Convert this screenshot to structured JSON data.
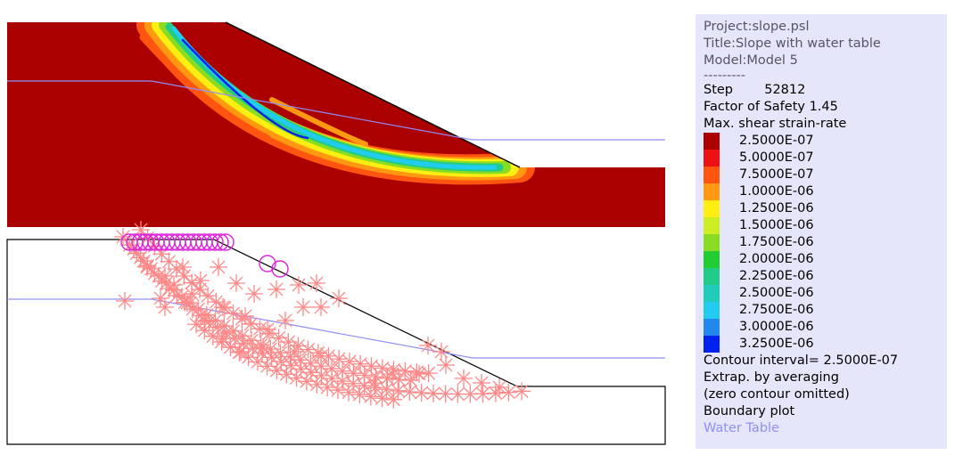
{
  "legend": {
    "project": "Project:slope.psl",
    "title": "Title:Slope with water table",
    "model": "Model:Model 5",
    "separator": "---------",
    "step_label": "Step",
    "step_value": "52812",
    "fos_label": "Factor of Safety",
    "fos_value": "1.45",
    "contour_title": "Max. shear strain-rate",
    "contours": [
      {
        "value": "2.5000E-07",
        "color": "#aa0000"
      },
      {
        "value": "5.0000E-07",
        "color": "#ee1111"
      },
      {
        "value": "7.5000E-07",
        "color": "#ff5511"
      },
      {
        "value": "1.0000E-06",
        "color": "#ff9911"
      },
      {
        "value": "1.2500E-06",
        "color": "#ffee11"
      },
      {
        "value": "1.5000E-06",
        "color": "#ccee22"
      },
      {
        "value": "1.7500E-06",
        "color": "#88dd22"
      },
      {
        "value": "2.0000E-06",
        "color": "#22cc33"
      },
      {
        "value": "2.2500E-06",
        "color": "#22cc88"
      },
      {
        "value": "2.5000E-06",
        "color": "#22ccbb"
      },
      {
        "value": "2.7500E-06",
        "color": "#22ccee"
      },
      {
        "value": "3.0000E-06",
        "color": "#2288ee"
      },
      {
        "value": "3.2500E-06",
        "color": "#0022ee"
      }
    ],
    "contour_interval": "Contour interval=  2.5000E-07",
    "extrap": "Extrap. by averaging",
    "zero_omitted": "(zero contour omitted)",
    "boundary": "Boundary plot",
    "water_table": "Water Table"
  },
  "colors": {
    "soil": "#aa0000",
    "water_table": "#8f8ff5",
    "boundary": "#000000",
    "plastic_marker": "#ff8888",
    "yield_circle": "#dd22dd"
  }
}
